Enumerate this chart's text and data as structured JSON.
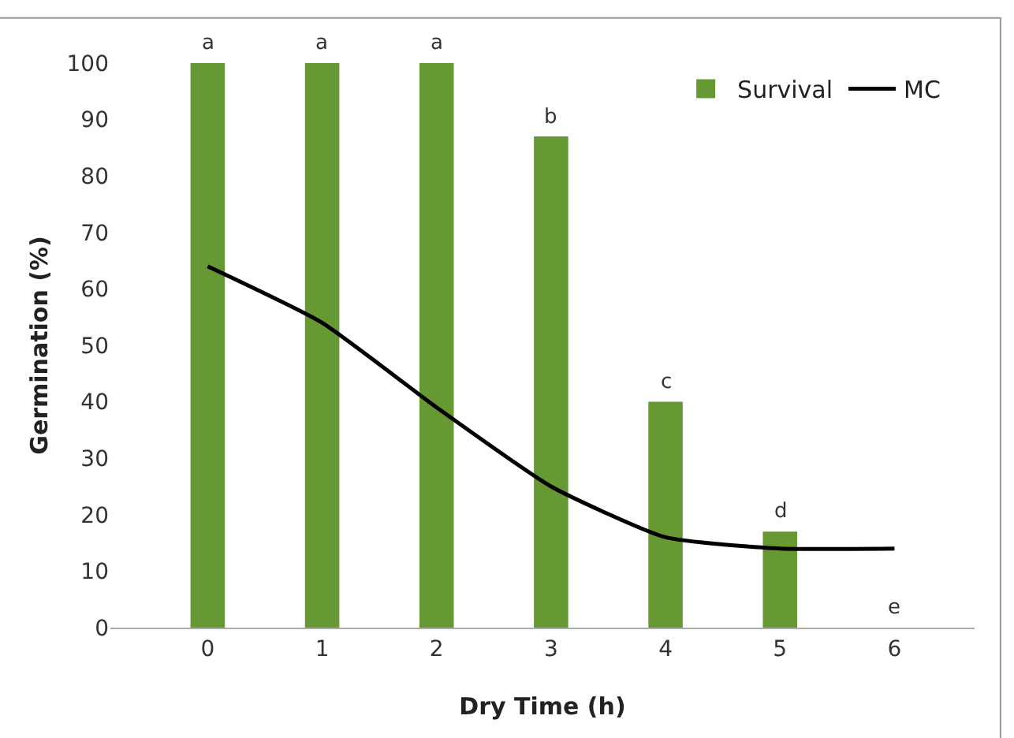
{
  "chart_data": {
    "type": "bar",
    "xlabel": "Dry Time (h)",
    "ylabel": "Germination (%)",
    "categories": [
      "0",
      "1",
      "2",
      "3",
      "4",
      "5",
      "6"
    ],
    "series": [
      {
        "name": "Survival",
        "color": "#669933",
        "values": [
          100,
          100,
          100,
          87,
          40,
          17,
          0
        ]
      },
      {
        "name": "MC",
        "type": "line",
        "color": "#000000",
        "values": [
          64,
          54,
          39,
          25,
          16,
          14,
          14
        ]
      }
    ],
    "ylim": [
      0,
      100
    ],
    "yticks": [
      0,
      10,
      20,
      30,
      40,
      50,
      60,
      70,
      80,
      90,
      100
    ],
    "annotations": [
      {
        "text": "a",
        "x": "0",
        "y": 100
      },
      {
        "text": "a",
        "x": "1",
        "y": 100
      },
      {
        "text": "a",
        "x": "2",
        "y": 100
      },
      {
        "text": "b",
        "x": "3",
        "y": 87
      },
      {
        "text": "c",
        "x": "4",
        "y": 40
      },
      {
        "text": "d",
        "x": "5",
        "y": 17
      },
      {
        "text": "e",
        "x": "6",
        "y": 0
      }
    ],
    "legend": "top right",
    "grid": false,
    "marker": "none",
    "line_style": "solid"
  }
}
